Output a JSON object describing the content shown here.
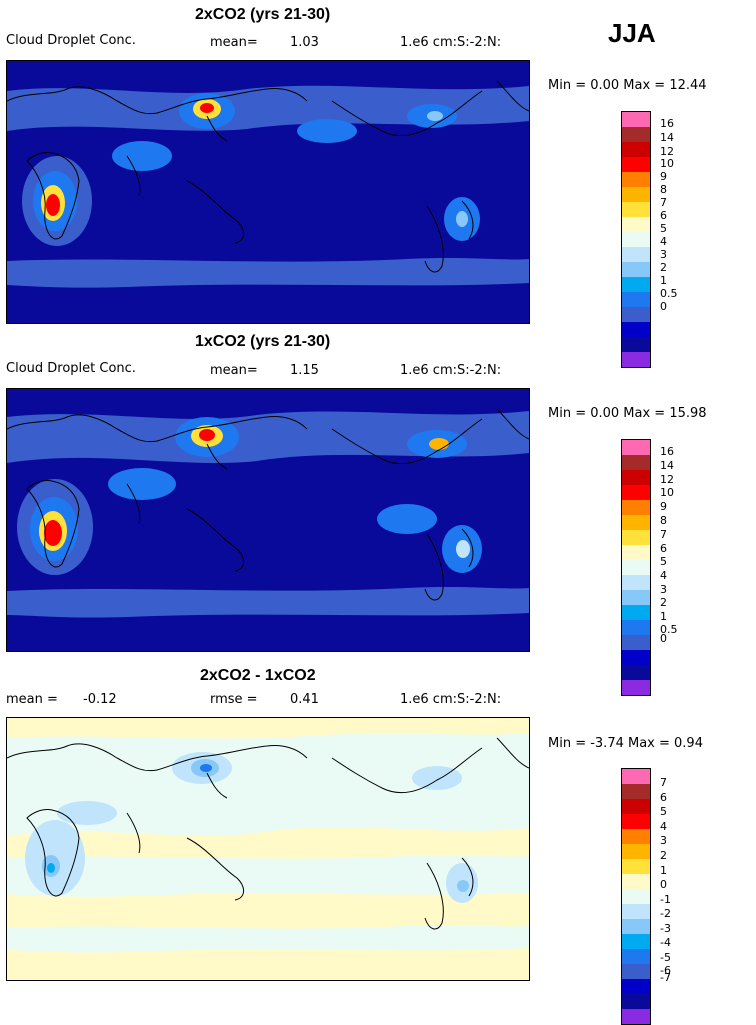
{
  "season": "JJA",
  "colors": {
    "c0": "#8a2be2",
    "c1": "#0a0a9a",
    "c2": "#0000c8",
    "c3": "#3a5fcd",
    "c4": "#1e78f0",
    "c5": "#00aaf0",
    "c6": "#87c8f8",
    "c7": "#bfe4fb",
    "c8": "#e9fbf4",
    "c9": "#fffac8",
    "c10": "#ffe13a",
    "c11": "#ffb400",
    "c12": "#ff7f00",
    "c13": "#ff0000",
    "c14": "#cc0000",
    "c15": "#a52a2a",
    "c16": "#ff69b4"
  },
  "panels": [
    {
      "title": "2xCO2 (yrs 21-30)",
      "field_label": "Cloud Droplet Conc.",
      "stat1_label": "mean=",
      "stat1_value": "1.03",
      "units": "1.e6 cm:S:-2:N:",
      "min_max": "Min =    0.00 Max =   12.44",
      "colorbar_ticks": [
        "16",
        "14",
        "12",
        "10",
        "9",
        "8",
        "7",
        "6",
        "5",
        "4",
        "3",
        "2",
        "1",
        "0.5",
        "0"
      ]
    },
    {
      "title": "1xCO2 (yrs 21-30)",
      "field_label": "Cloud Droplet Conc.",
      "stat1_label": "mean=",
      "stat1_value": "1.15",
      "units": "1.e6 cm:S:-2:N:",
      "min_max": "Min =    0.00 Max =   15.98",
      "colorbar_ticks": [
        "16",
        "14",
        "12",
        "10",
        "9",
        "8",
        "7",
        "6",
        "5",
        "4",
        "3",
        "2",
        "1",
        "0.5",
        "0"
      ]
    },
    {
      "title": "2xCO2 - 1xCO2",
      "field_label": "mean =",
      "stat1_label": "",
      "stat1_value": "-0.12",
      "stat2_label": "rmse =",
      "stat2_value": "0.41",
      "units": "1.e6 cm:S:-2:N:",
      "min_max": "Min =  -3.74 Max =    0.94",
      "colorbar_ticks": [
        "7",
        "6",
        "5",
        "4",
        "3",
        "2",
        "1",
        "0",
        "-1",
        "-2",
        "-3",
        "-4",
        "-5",
        "-6",
        "-7"
      ]
    }
  ],
  "chart_data": [
    {
      "type": "heatmap",
      "title": "2xCO2 (yrs 21-30)",
      "field": "Cloud Droplet Conc.",
      "units": "1.e6 cm:S:-2:N:",
      "mean": 1.03,
      "min": 0.0,
      "max": 12.44,
      "levels": [
        0,
        0.5,
        1,
        2,
        3,
        4,
        5,
        6,
        7,
        8,
        9,
        10,
        12,
        14,
        16
      ]
    },
    {
      "type": "heatmap",
      "title": "1xCO2 (yrs 21-30)",
      "field": "Cloud Droplet Conc.",
      "units": "1.e6 cm:S:-2:N:",
      "mean": 1.15,
      "min": 0.0,
      "max": 15.98,
      "levels": [
        0,
        0.5,
        1,
        2,
        3,
        4,
        5,
        6,
        7,
        8,
        9,
        10,
        12,
        14,
        16
      ]
    },
    {
      "type": "heatmap",
      "title": "2xCO2 - 1xCO2",
      "units": "1.e6 cm:S:-2:N:",
      "mean": -0.12,
      "rmse": 0.41,
      "min": -3.74,
      "max": 0.94,
      "levels": [
        -7,
        -6,
        -5,
        -4,
        -3,
        -2,
        -1,
        0,
        1,
        2,
        3,
        4,
        5,
        6,
        7
      ]
    }
  ]
}
